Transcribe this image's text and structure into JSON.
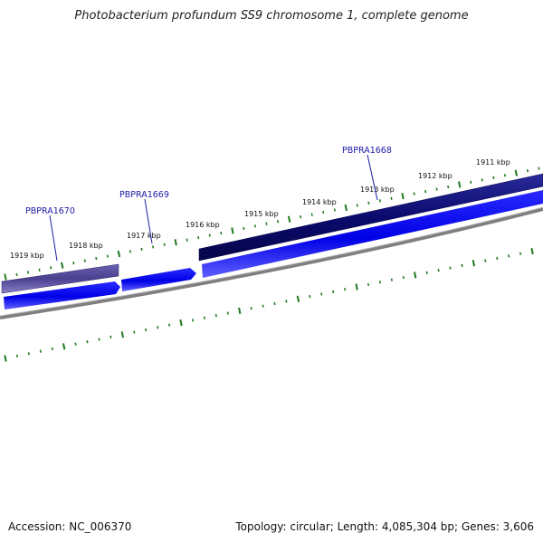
{
  "title": "Photobacterium profundum SS9 chromosome 1, complete genome",
  "footer": {
    "accession": "Accession: NC_006370",
    "summary": "Topology: circular; Length: 4,085,304 bp; Genes: 3,606"
  },
  "ticks": [
    {
      "label": "1911 kbp"
    },
    {
      "label": "1912 kbp"
    },
    {
      "label": "1913 kbp"
    },
    {
      "label": "1914 kbp"
    },
    {
      "label": "1915 kbp"
    },
    {
      "label": "1916 kbp"
    },
    {
      "label": "1917 kbp"
    },
    {
      "label": "1918 kbp"
    },
    {
      "label": "1919 kbp"
    }
  ],
  "genes": [
    {
      "label": "PBPRA1668"
    },
    {
      "label": "PBPRA1669"
    },
    {
      "label": "PBPRA1670"
    }
  ],
  "colors": {
    "tick": "#1f7a1f",
    "gene_dark": "#0a0a6e",
    "gene_light": "#4a4090",
    "cds": "#0000e6",
    "backbone": "#7f7f7f",
    "label": "#1a1aa6"
  }
}
